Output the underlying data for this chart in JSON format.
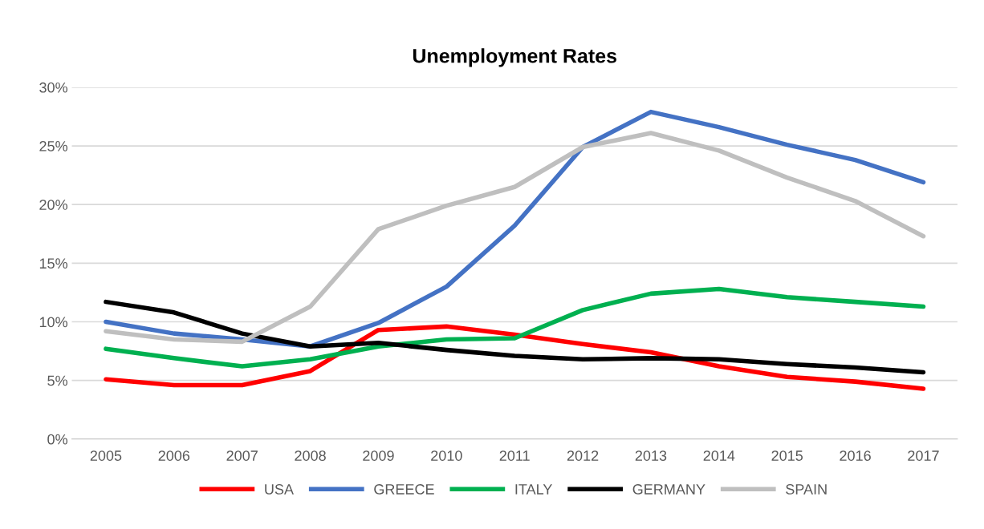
{
  "chart_data": {
    "type": "line",
    "title": "Unemployment Rates",
    "categories": [
      "2005",
      "2006",
      "2007",
      "2008",
      "2009",
      "2010",
      "2011",
      "2012",
      "2013",
      "2014",
      "2015",
      "2016",
      "2017"
    ],
    "series": [
      {
        "name": "USA",
        "color": "#ff0000",
        "values": [
          5.1,
          4.6,
          4.6,
          5.8,
          9.3,
          9.6,
          8.9,
          8.1,
          7.4,
          6.2,
          5.3,
          4.9,
          4.3
        ]
      },
      {
        "name": "GREECE",
        "color": "#4472c4",
        "values": [
          10.0,
          9.0,
          8.5,
          7.9,
          9.9,
          13.0,
          18.2,
          24.9,
          27.9,
          26.6,
          25.1,
          23.8,
          21.9
        ]
      },
      {
        "name": "ITALY",
        "color": "#00b050",
        "values": [
          7.7,
          6.9,
          6.2,
          6.8,
          7.9,
          8.5,
          8.6,
          11.0,
          12.4,
          12.8,
          12.1,
          11.7,
          11.3
        ]
      },
      {
        "name": "GERMANY",
        "color": "#000000",
        "values": [
          11.7,
          10.8,
          9.0,
          7.9,
          8.2,
          7.6,
          7.1,
          6.8,
          6.9,
          6.8,
          6.4,
          6.1,
          5.7
        ]
      },
      {
        "name": "SPAIN",
        "color": "#bfbfbf",
        "values": [
          9.2,
          8.5,
          8.3,
          11.3,
          17.9,
          19.9,
          21.5,
          24.9,
          26.1,
          24.6,
          22.3,
          20.3,
          17.3
        ]
      }
    ],
    "ylim": [
      0,
      30
    ],
    "yticks": [
      {
        "value": 0,
        "label": "0%"
      },
      {
        "value": 5,
        "label": "5%"
      },
      {
        "value": 10,
        "label": "10%"
      },
      {
        "value": 15,
        "label": "15%"
      },
      {
        "value": 20,
        "label": "20%"
      },
      {
        "value": 25,
        "label": "25%"
      },
      {
        "value": 30,
        "label": "30%"
      }
    ],
    "grid": "y",
    "legend": "bottom",
    "marker": "none",
    "line_style": "solid"
  }
}
